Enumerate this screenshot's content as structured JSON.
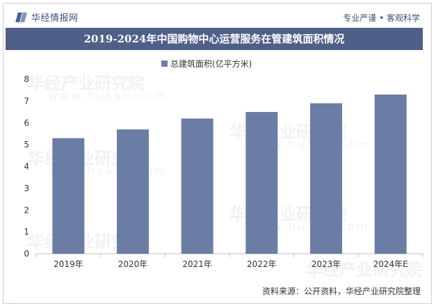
{
  "header": {
    "logo_text": "华经情报网",
    "slogan": "专业严谨 • 客观科学"
  },
  "watermark": {
    "text": "华经产业研究院",
    "url": "www.huaon.com"
  },
  "chart_data": {
    "type": "bar",
    "title": "2019-2024年中国购物中心运营服务在管建筑面积情况",
    "categories": [
      "2019年",
      "2020年",
      "2021年",
      "2022年",
      "2023年",
      "2024年E"
    ],
    "series": [
      {
        "name": "总建筑面积(亿平方米)",
        "values": [
          5.3,
          5.7,
          6.2,
          6.5,
          6.9,
          7.3
        ]
      }
    ],
    "ylim": [
      0,
      8
    ],
    "yticks": [
      "0",
      "1",
      "2",
      "3",
      "4",
      "5",
      "6",
      "7",
      "8"
    ],
    "legend_position": "top-center",
    "bar_color": "#6b7da5",
    "title_bar_color": "#4f5f88"
  },
  "footer": {
    "source": "资料来源：公开资料，华经产业研究院整理"
  }
}
